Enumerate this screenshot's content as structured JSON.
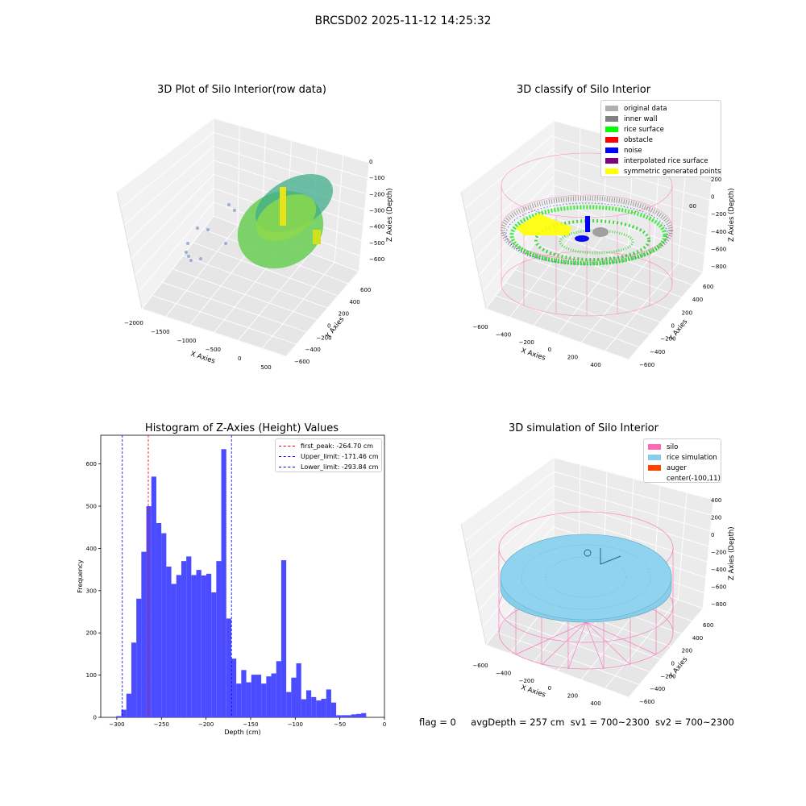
{
  "figure": {
    "suptitle": "BRCSD02 2025-11-12 14:25:32",
    "status": {
      "flag": "flag = 0",
      "avg_depth": "avgDepth = 257 cm",
      "sv1": "sv1 = 700~2300",
      "sv2": "sv2 = 700~2300"
    }
  },
  "colors": {
    "histogram_bar": "#4b4bff",
    "first_peak_line": "#ff0000",
    "limit_lines": "#0000ff",
    "silo_wire": "#ff69b4",
    "rice_simulation": "#87ceeb",
    "inner_wall": "#808080",
    "rice_surface": "#00ff00"
  },
  "chart_data": [
    {
      "type": "scatter",
      "kind": "3d",
      "title": "3D Plot of Silo Interior(row data)",
      "xlabel": "X Axies",
      "ylabel": "Y Axies",
      "zlabel": "Z Axies (Depth)",
      "x_ticks": [
        "-2000",
        "-1500",
        "-1000",
        "-500",
        "0",
        "500"
      ],
      "y_ticks": [
        "-600",
        "-400",
        "-200",
        "0",
        "200",
        "400",
        "600"
      ],
      "z_ticks": [
        "0",
        "-100",
        "-200",
        "-300",
        "-400",
        "-500",
        "-600"
      ],
      "colormap": "viridis"
    },
    {
      "type": "scatter",
      "kind": "3d",
      "title": "3D classify of Silo Interior",
      "xlabel": "X Axies",
      "ylabel": "Y Axies",
      "zlabel": "Z Axies (Depth)",
      "x_ticks": [
        "-600",
        "-400",
        "-200",
        "0",
        "200",
        "400"
      ],
      "y_ticks": [
        "-600",
        "-400",
        "-200",
        "0",
        "200",
        "400",
        "600"
      ],
      "z_ticks": [
        "200",
        "0",
        "-200",
        "-400",
        "-600",
        "-800"
      ],
      "z_tick_top_partial": "00",
      "legend": [
        {
          "label": "original data",
          "color": "#b0b0b0"
        },
        {
          "label": "inner wall",
          "color": "#808080"
        },
        {
          "label": "rice surface",
          "color": "#00ff00"
        },
        {
          "label": "obstacle",
          "color": "#ff0000"
        },
        {
          "label": "noise",
          "color": "#0000ff"
        },
        {
          "label": "interpolated rice surface",
          "color": "#800080"
        },
        {
          "label": "symmetric generated points",
          "color": "#ffff00"
        }
      ]
    },
    {
      "type": "bar",
      "kind": "histogram",
      "title": "Histogram of Z-Axies (Height) Values",
      "xlabel": "Depth (cm)",
      "ylabel": "Frequency",
      "xlim": [
        -318,
        0
      ],
      "ylim": [
        0,
        668
      ],
      "x_ticks": [
        -300,
        -250,
        -200,
        -150,
        -100,
        -50,
        0
      ],
      "y_ticks": [
        0,
        100,
        200,
        300,
        400,
        500,
        600
      ],
      "bin_width": 5.6,
      "bin_start": -300.5,
      "values": [
        3,
        18,
        56,
        177,
        281,
        392,
        500,
        570,
        460,
        436,
        357,
        316,
        337,
        370,
        381,
        337,
        349,
        336,
        340,
        296,
        370,
        635,
        234,
        139,
        80,
        112,
        83,
        101,
        101,
        80,
        97,
        104,
        133,
        372,
        60,
        94,
        128,
        43,
        64,
        48,
        40,
        44,
        66,
        35,
        5,
        5,
        5,
        7,
        8,
        10
      ],
      "lines": [
        {
          "label": "first_peak: -264.70 cm",
          "x": -264.7,
          "color": "#ff0000"
        },
        {
          "label": "Upper_limit: -171.46 cm",
          "x": -171.46,
          "color": "#0000ff"
        },
        {
          "label": "Lower_limit: -293.84 cm",
          "x": -293.84,
          "color": "#0000ff"
        }
      ],
      "legend_position": "top-right"
    },
    {
      "type": "scatter",
      "kind": "3d",
      "title": "3D simulation of Silo Interior",
      "xlabel": "X Axies",
      "ylabel": "Y Axies",
      "zlabel": "Z Axies (Depth)",
      "x_ticks": [
        "-600",
        "-400",
        "-200",
        "0",
        "200",
        "400"
      ],
      "y_ticks": [
        "-600",
        "-400",
        "-200",
        "0",
        "200",
        "400",
        "600"
      ],
      "z_ticks": [
        "400",
        "200",
        "0",
        "-200",
        "-400",
        "-600",
        "-800"
      ],
      "legend": [
        {
          "label": "silo",
          "color": "#ff69b4"
        },
        {
          "label": "rice simulation",
          "color": "#87ceeb"
        },
        {
          "label": "auger",
          "color": "#ff4500"
        },
        {
          "label": "center(-100,11)",
          "color": ""
        }
      ]
    }
  ]
}
